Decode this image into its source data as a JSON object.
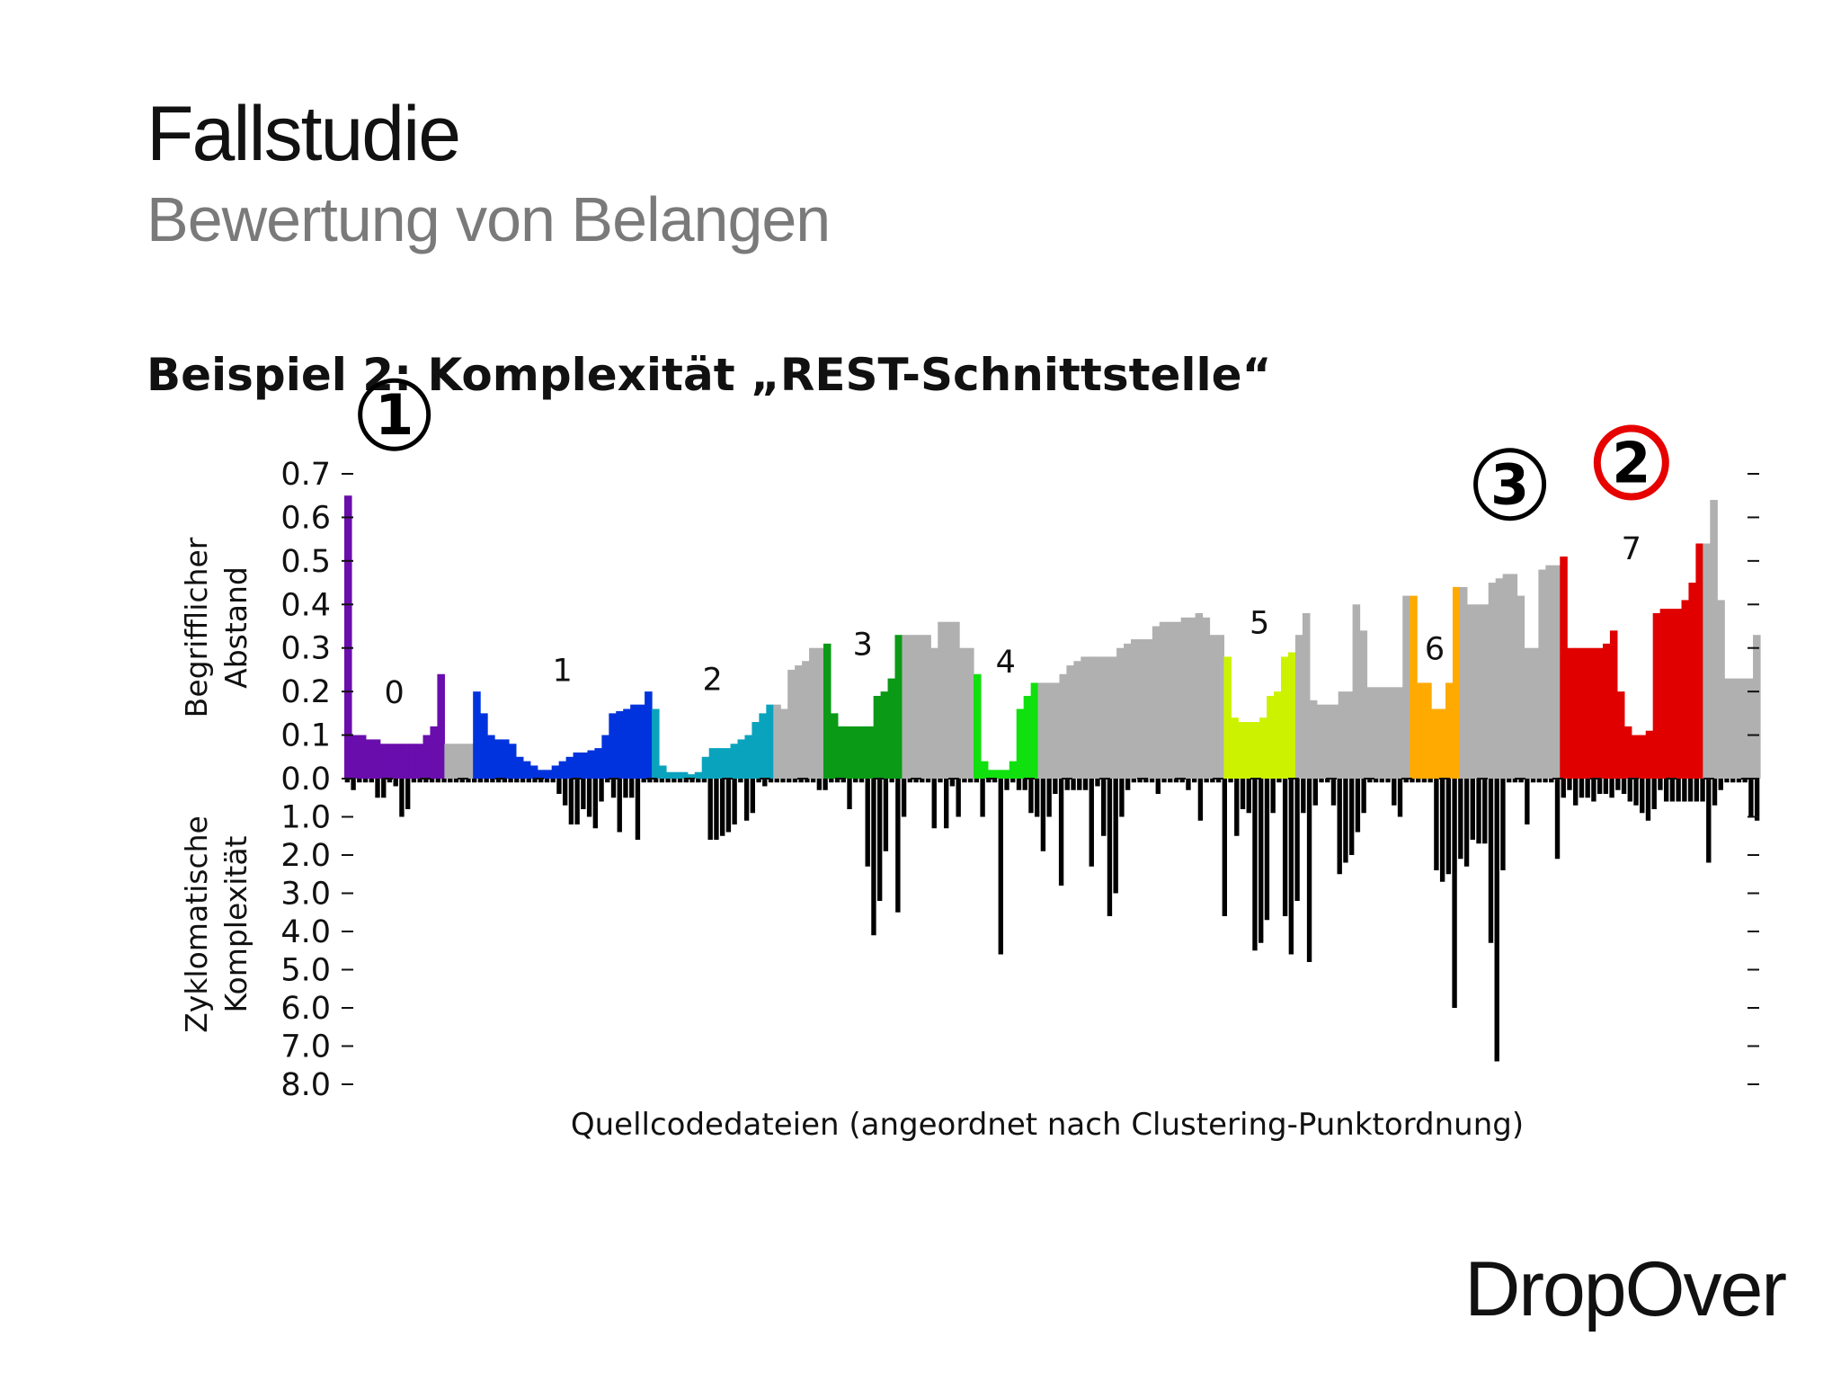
{
  "slide": {
    "title": "Fallstudie",
    "subtitle": "Bewertung von Belangen",
    "heading": "Beispiel 2: Komplexität „REST-Schnittstelle“",
    "brand": "DropOver"
  },
  "colors": {
    "cluster_0": "#6a0dad",
    "cluster_1": "#0033dd",
    "cluster_2": "#0aa3bd",
    "cluster_3": "#0a9a16",
    "cluster_4": "#11e00f",
    "cluster_5": "#ccf200",
    "cluster_6": "#ffaa00",
    "cluster_7": "#e00000",
    "noise": "#b0b0b0",
    "complexity": "#000000",
    "highlight_ring": "#e60000"
  },
  "chart_data": {
    "type": "bar",
    "xlabel": "Quellcodedateien (angeordnet nach Clustering-Punktordnung)",
    "top_panel": {
      "ylabel_line1": "Begrifflicher",
      "ylabel_line2": "Abstand",
      "ylim": [
        0,
        0.7
      ],
      "ticks": [
        "0.7",
        "0.6",
        "0.5",
        "0.4",
        "0.3",
        "0.2",
        "0.1",
        "0.0"
      ],
      "segments": [
        {
          "cluster": "0",
          "color": "cluster_0",
          "values": [
            0.65,
            0.1,
            0.1,
            0.09,
            0.09,
            0.08,
            0.08,
            0.08,
            0.08,
            0.08,
            0.08,
            0.1,
            0.12,
            0.24
          ]
        },
        {
          "cluster": null,
          "color": "noise",
          "values": [
            0.08,
            0.08,
            0.08,
            0.08
          ]
        },
        {
          "cluster": "1",
          "color": "cluster_1",
          "values": [
            0.2,
            0.15,
            0.1,
            0.09,
            0.09,
            0.08,
            0.05,
            0.04,
            0.03,
            0.02,
            0.02,
            0.03,
            0.04,
            0.05,
            0.06,
            0.06,
            0.065,
            0.07,
            0.1,
            0.15,
            0.155,
            0.16,
            0.17,
            0.17,
            0.2
          ]
        },
        {
          "cluster": "2",
          "color": "cluster_2",
          "values": [
            0.16,
            0.03,
            0.015,
            0.015,
            0.015,
            0.01,
            0.015,
            0.05,
            0.07,
            0.07,
            0.07,
            0.08,
            0.09,
            0.1,
            0.13,
            0.15,
            0.17
          ]
        },
        {
          "cluster": null,
          "color": "noise",
          "values": [
            0.17,
            0.16,
            0.25,
            0.26,
            0.27,
            0.3,
            0.3
          ]
        },
        {
          "cluster": "3",
          "color": "cluster_3",
          "values": [
            0.31,
            0.15,
            0.12,
            0.12,
            0.12,
            0.12,
            0.12,
            0.19,
            0.2,
            0.23,
            0.33
          ]
        },
        {
          "cluster": null,
          "color": "noise",
          "values": [
            0.33,
            0.33,
            0.33,
            0.33,
            0.3,
            0.36,
            0.36,
            0.36,
            0.3,
            0.3
          ]
        },
        {
          "cluster": "4",
          "color": "cluster_4",
          "values": [
            0.24,
            0.04,
            0.02,
            0.02,
            0.02,
            0.04,
            0.16,
            0.19,
            0.22
          ]
        },
        {
          "cluster": null,
          "color": "noise",
          "values": [
            0.22,
            0.22,
            0.22,
            0.24,
            0.26,
            0.27,
            0.28,
            0.28,
            0.28,
            0.28,
            0.28,
            0.3,
            0.31,
            0.32,
            0.32,
            0.32,
            0.35,
            0.36,
            0.36,
            0.36,
            0.37,
            0.37,
            0.38,
            0.37,
            0.33,
            0.33
          ]
        },
        {
          "cluster": "5",
          "color": "cluster_5",
          "values": [
            0.28,
            0.14,
            0.13,
            0.13,
            0.13,
            0.14,
            0.19,
            0.2,
            0.28,
            0.29
          ]
        },
        {
          "cluster": null,
          "color": "noise",
          "values": [
            0.33,
            0.38,
            0.18,
            0.17,
            0.17,
            0.17,
            0.2,
            0.2,
            0.4,
            0.34,
            0.21,
            0.21,
            0.21,
            0.21,
            0.21,
            0.42
          ]
        },
        {
          "cluster": "6",
          "color": "cluster_6",
          "values": [
            0.42,
            0.22,
            0.22,
            0.16,
            0.16,
            0.22,
            0.44
          ]
        },
        {
          "cluster": null,
          "color": "noise",
          "values": [
            0.44,
            0.4,
            0.4,
            0.4,
            0.45,
            0.46,
            0.47,
            0.47,
            0.42,
            0.3,
            0.3,
            0.48,
            0.49,
            0.49
          ]
        },
        {
          "cluster": "7",
          "color": "cluster_7",
          "values": [
            0.51,
            0.3,
            0.3,
            0.3,
            0.3,
            0.3,
            0.31,
            0.34,
            0.2,
            0.12,
            0.1,
            0.1,
            0.11,
            0.38,
            0.39,
            0.39,
            0.39,
            0.41,
            0.45,
            0.54
          ]
        },
        {
          "cluster": null,
          "color": "noise",
          "values": [
            0.54,
            0.64,
            0.41,
            0.23,
            0.23,
            0.23,
            0.23,
            0.33
          ]
        }
      ],
      "cluster_labels": [
        {
          "text": "0",
          "segment": 0
        },
        {
          "text": "1",
          "segment": 2
        },
        {
          "text": "2",
          "segment": 3
        },
        {
          "text": "3",
          "segment": 5
        },
        {
          "text": "4",
          "segment": 7
        },
        {
          "text": "5",
          "segment": 9
        },
        {
          "text": "6",
          "segment": 11
        },
        {
          "text": "7",
          "segment": 13
        }
      ],
      "markers": [
        {
          "text": "1",
          "segment": 0,
          "style": "black"
        },
        {
          "text": "3",
          "segment": 12,
          "style": "black"
        },
        {
          "text": "2",
          "segment": 13,
          "style": "red"
        }
      ]
    },
    "bottom_panel": {
      "ylabel_line1": "Zyklomatische",
      "ylabel_line2": "Komplexität",
      "ylim": [
        0,
        8.0
      ],
      "ticks": [
        "1.0",
        "2.0",
        "3.0",
        "4.0",
        "5.0",
        "6.0",
        "7.0",
        "8.0"
      ],
      "values": [
        0.1,
        0.3,
        0.1,
        0.1,
        0.1,
        0.5,
        0.5,
        0.1,
        0.2,
        1.0,
        0.8,
        0.1,
        0.1,
        0.1,
        0.1,
        0.1,
        0.1,
        0.1,
        0.1,
        0.1,
        0.1,
        0.1,
        0.1,
        0.1,
        0.1,
        0.1,
        0.1,
        0.1,
        0.1,
        0.1,
        0.1,
        0.1,
        0.1,
        0.1,
        0.1,
        0.4,
        0.7,
        1.2,
        1.2,
        0.8,
        1.0,
        1.3,
        0.6,
        0.1,
        0.5,
        1.4,
        0.5,
        0.5,
        1.6,
        0.1,
        0.1,
        0.1,
        0.1,
        0.1,
        0.1,
        0.1,
        0.1,
        0.1,
        0.1,
        0.1,
        1.6,
        1.6,
        1.5,
        1.4,
        1.2,
        0.1,
        1.1,
        0.9,
        0.1,
        0.2,
        0.1,
        0.1,
        0.1,
        0.1,
        0.1,
        0.1,
        0.1,
        0.1,
        0.3,
        0.3,
        0.1,
        0.1,
        0.1,
        0.8,
        0.1,
        0.1,
        2.3,
        4.1,
        3.2,
        1.9,
        0.1,
        3.5,
        1.0,
        0.1,
        0.1,
        0.1,
        0.1,
        1.3,
        0.1,
        1.3,
        0.2,
        1.0,
        0.1,
        0.1,
        0.1,
        1.0,
        0.1,
        0.1,
        4.6,
        0.3,
        0.1,
        0.3,
        0.3,
        0.9,
        1.0,
        1.9,
        1.0,
        0.4,
        2.8,
        0.3,
        0.3,
        0.3,
        0.3,
        2.3,
        0.2,
        1.5,
        3.6,
        3.0,
        1.0,
        0.3,
        0.1,
        0.1,
        0.1,
        0.1,
        0.4,
        0.1,
        0.1,
        0.1,
        0.1,
        0.3,
        0.1,
        1.1,
        0.1,
        0.1,
        0.1,
        3.6,
        0.1,
        1.5,
        0.8,
        0.9,
        4.5,
        4.3,
        3.7,
        0.9,
        0.1,
        3.6,
        4.6,
        3.2,
        0.9,
        4.8,
        0.7,
        0.1,
        0.1,
        0.7,
        2.5,
        2.2,
        2.0,
        1.4,
        0.9,
        0.1,
        0.1,
        0.1,
        0.1,
        0.7,
        1.0,
        0.1,
        0.1,
        0.1,
        0.1,
        0.1,
        2.4,
        2.7,
        2.5,
        6.0,
        2.1,
        2.3,
        1.6,
        1.7,
        1.7,
        4.3,
        7.4,
        2.4,
        0.1,
        0.1,
        0.1,
        1.2,
        0.1,
        0.1,
        0.1,
        0.1,
        2.1,
        0.5,
        0.3,
        0.7,
        0.5,
        0.5,
        0.6,
        0.4,
        0.4,
        0.5,
        0.3,
        0.4,
        0.6,
        0.7,
        0.9,
        1.1,
        0.8,
        0.3,
        0.6,
        0.6,
        0.6,
        0.6,
        0.6,
        0.6,
        0.6,
        2.2,
        0.7,
        0.3,
        0.1,
        0.1,
        0.1,
        0.1,
        1.0,
        1.1
      ]
    }
  }
}
